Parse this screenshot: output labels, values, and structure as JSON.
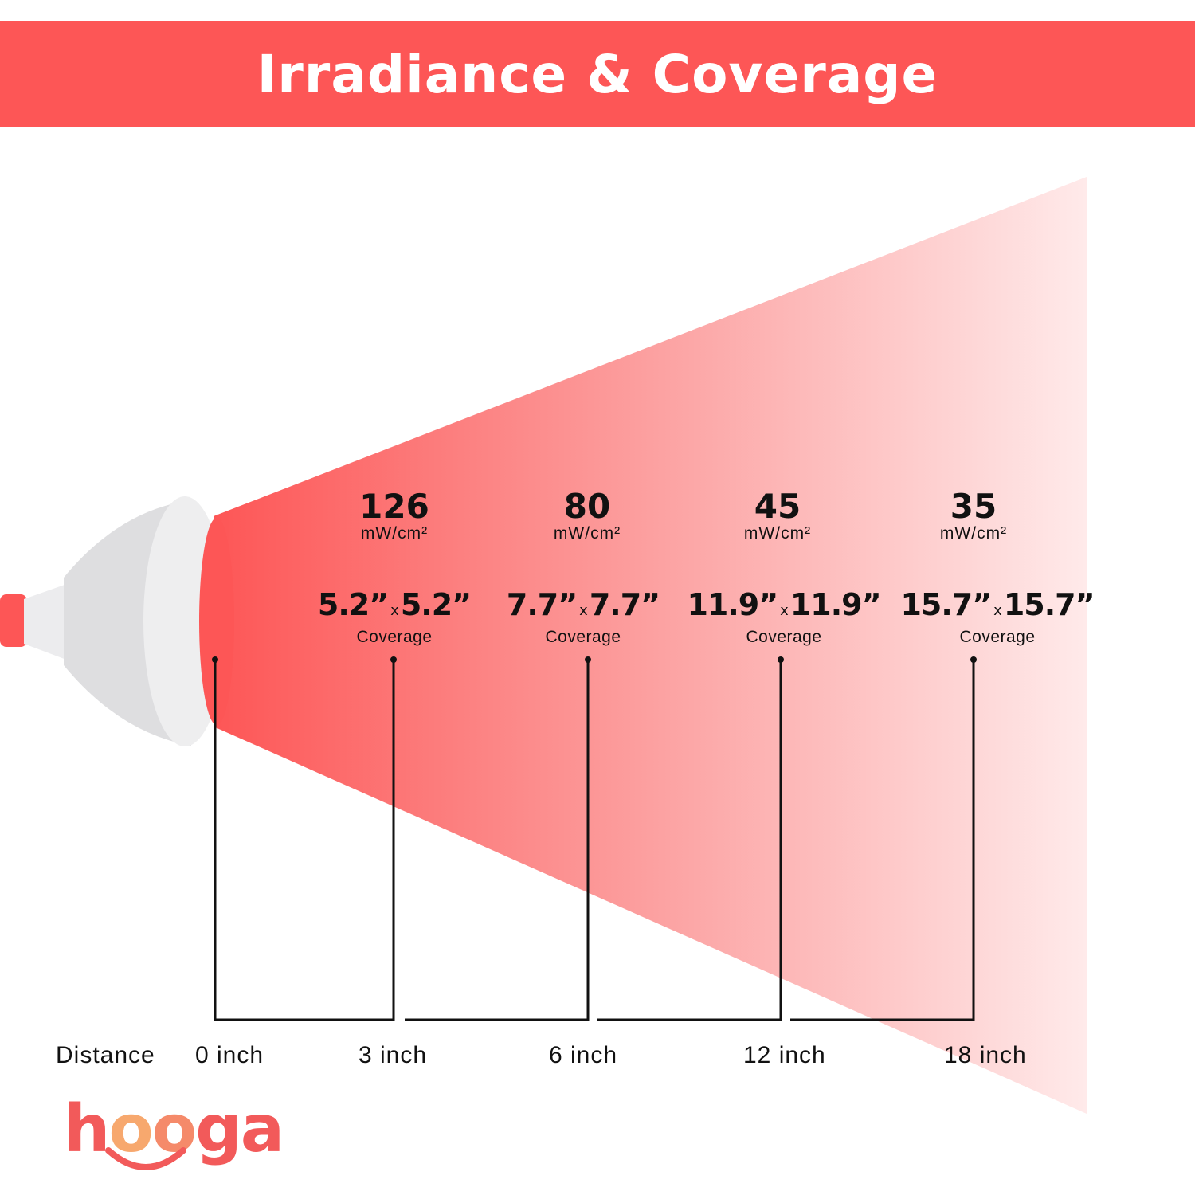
{
  "header": {
    "title": "Irradiance & Coverage"
  },
  "colors": {
    "accent": "#fd5656",
    "beam_light": "#ffeaea",
    "device": "#e6e6e8",
    "text": "#111111"
  },
  "measurements": [
    {
      "irradiance": "126",
      "unit": "mW/cm²",
      "width": "5.2”",
      "x": "x",
      "height": "5.2”",
      "coverage_label": "Coverage",
      "distance": "3 inch"
    },
    {
      "irradiance": "80",
      "unit": "mW/cm²",
      "width": "7.7”",
      "x": "x",
      "height": "7.7”",
      "coverage_label": "Coverage",
      "distance": "6 inch"
    },
    {
      "irradiance": "45",
      "unit": "mW/cm²",
      "width": "11.9”",
      "x": "x",
      "height": "11.9”",
      "coverage_label": "Coverage",
      "distance": "12 inch"
    },
    {
      "irradiance": "35",
      "unit": "mW/cm²",
      "width": "15.7”",
      "x": "x",
      "height": "15.7”",
      "coverage_label": "Coverage",
      "distance": "18 inch"
    }
  ],
  "distance_row": {
    "label": "Distance",
    "start": "0 inch"
  },
  "brand": {
    "h": "h",
    "o1": "o",
    "o2": "o",
    "ga": "ga"
  }
}
